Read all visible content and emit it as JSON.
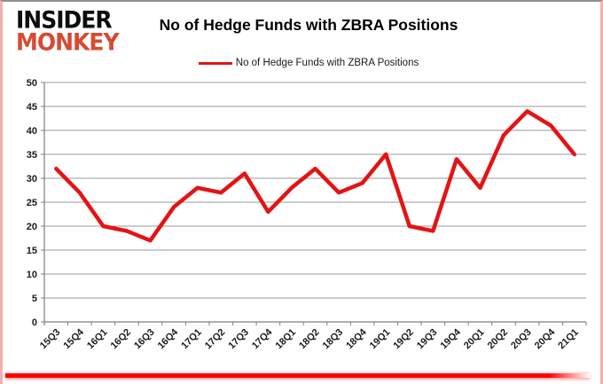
{
  "logo": {
    "top": "INSIDER",
    "bottom": "MONKEY"
  },
  "header": {
    "title": "No of Hedge Funds with ZBRA Positions"
  },
  "legend": {
    "label": "No of Hedge Funds with ZBRA Positions"
  },
  "chart_data": {
    "type": "line",
    "title": "No of Hedge Funds with ZBRA Positions",
    "series_name": "No of Hedge Funds with ZBRA Positions",
    "categories": [
      "15Q3",
      "15Q4",
      "16Q1",
      "16Q2",
      "16Q3",
      "16Q4",
      "17Q1",
      "17Q2",
      "17Q3",
      "17Q4",
      "18Q1",
      "18Q2",
      "18Q3",
      "18Q4",
      "19Q1",
      "19Q2",
      "19Q3",
      "19Q4",
      "20Q1",
      "20Q2",
      "20Q3",
      "20Q4",
      "21Q1"
    ],
    "values": [
      32,
      27,
      20,
      19,
      17,
      24,
      28,
      27,
      31,
      23,
      28,
      32,
      27,
      29,
      35,
      20,
      19,
      34,
      28,
      39,
      44,
      41,
      35
    ],
    "xlabel": "",
    "ylabel": "",
    "ylim": [
      0,
      50
    ],
    "ytick_step": 5,
    "grid": true,
    "legend_position": "top-center"
  },
  "colors": {
    "line": "#e41414",
    "logo_red": "#d84a32",
    "grid": "#9a9a9a",
    "axis": "#808080",
    "text": "#1a1a1a",
    "bottom_bar": "#ff0000",
    "side_border": "#f3afab",
    "top_border": "#8f8f8f"
  }
}
